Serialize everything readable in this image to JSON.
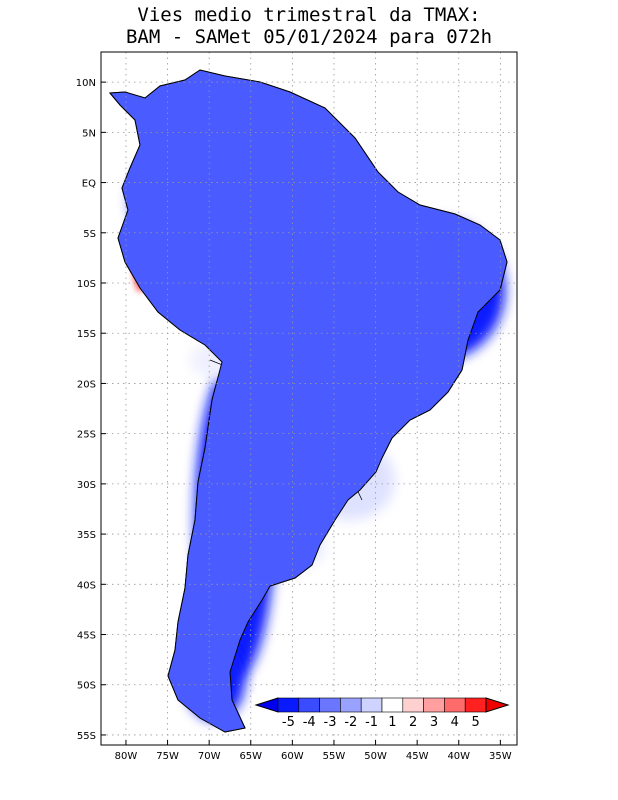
{
  "title": {
    "line1": "Vies medio trimestral da TMAX:",
    "line2": "BAM - SAMet 05/01/2024  para 072h"
  },
  "axes": {
    "lon_ticks": [
      "80W",
      "75W",
      "70W",
      "65W",
      "60W",
      "55W",
      "50W",
      "45W",
      "40W",
      "35W"
    ],
    "lat_ticks": [
      "10N",
      "5N",
      "EQ",
      "5S",
      "10S",
      "15S",
      "20S",
      "25S",
      "30S",
      "35S",
      "40S",
      "45S",
      "50S",
      "55S"
    ],
    "lon_range": [
      -83,
      -33
    ],
    "lat_range": [
      13,
      -56
    ],
    "grid": "dotted"
  },
  "colorbar": {
    "labels": [
      "-5",
      "-4",
      "-3",
      "-2",
      "-1",
      "1",
      "2",
      "3",
      "4",
      "5"
    ],
    "colors": [
      "#0a1aff",
      "#3b4bff",
      "#6a76ff",
      "#9aa2ff",
      "#cfd3ff",
      "#ffffff",
      "#ffd0d0",
      "#ff9f9f",
      "#ff6a6a",
      "#ff2020"
    ],
    "under_color": "#0000ee",
    "over_color": "#ee0000"
  },
  "colors": {
    "land_background": "#3b4bff",
    "border": "#000000"
  }
}
